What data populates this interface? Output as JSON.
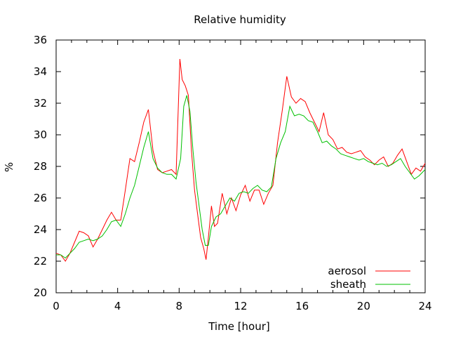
{
  "chart_data": {
    "type": "line",
    "title": "Relative humidity",
    "xlabel": "Time [hour]",
    "ylabel": "%",
    "xlim": [
      0,
      24
    ],
    "ylim": [
      20,
      36
    ],
    "xticks": [
      0,
      4,
      8,
      12,
      16,
      20,
      24
    ],
    "yticks": [
      20,
      22,
      24,
      26,
      28,
      30,
      32,
      34,
      36
    ],
    "grid": false,
    "legend_position": "bottom-right",
    "series": [
      {
        "name": "aerosol",
        "color": "#ff0000",
        "points": [
          [
            0.0,
            22.5
          ],
          [
            0.3,
            22.4
          ],
          [
            0.6,
            22.0
          ],
          [
            0.9,
            22.5
          ],
          [
            1.2,
            23.2
          ],
          [
            1.5,
            23.9
          ],
          [
            1.8,
            23.8
          ],
          [
            2.1,
            23.6
          ],
          [
            2.4,
            22.9
          ],
          [
            2.7,
            23.4
          ],
          [
            3.0,
            24.0
          ],
          [
            3.3,
            24.6
          ],
          [
            3.6,
            25.1
          ],
          [
            3.9,
            24.6
          ],
          [
            4.2,
            24.6
          ],
          [
            4.5,
            26.5
          ],
          [
            4.8,
            28.5
          ],
          [
            5.1,
            28.3
          ],
          [
            5.4,
            29.5
          ],
          [
            5.7,
            30.8
          ],
          [
            6.0,
            31.6
          ],
          [
            6.3,
            29.0
          ],
          [
            6.6,
            27.8
          ],
          [
            6.9,
            27.6
          ],
          [
            7.2,
            27.7
          ],
          [
            7.5,
            27.8
          ],
          [
            7.8,
            27.5
          ],
          [
            8.05,
            34.8
          ],
          [
            8.2,
            33.5
          ],
          [
            8.4,
            33.1
          ],
          [
            8.6,
            32.5
          ],
          [
            8.8,
            29.0
          ],
          [
            9.0,
            26.5
          ],
          [
            9.2,
            25.0
          ],
          [
            9.4,
            23.5
          ],
          [
            9.6,
            22.8
          ],
          [
            9.75,
            22.1
          ],
          [
            9.9,
            23.5
          ],
          [
            10.1,
            25.5
          ],
          [
            10.3,
            24.2
          ],
          [
            10.5,
            24.4
          ],
          [
            10.8,
            26.3
          ],
          [
            11.1,
            25.0
          ],
          [
            11.4,
            26.0
          ],
          [
            11.7,
            25.2
          ],
          [
            12.0,
            26.2
          ],
          [
            12.3,
            26.8
          ],
          [
            12.6,
            25.8
          ],
          [
            12.9,
            26.5
          ],
          [
            13.2,
            26.5
          ],
          [
            13.5,
            25.6
          ],
          [
            13.8,
            26.3
          ],
          [
            14.1,
            26.8
          ],
          [
            14.4,
            29.5
          ],
          [
            14.7,
            31.5
          ],
          [
            15.0,
            33.7
          ],
          [
            15.3,
            32.4
          ],
          [
            15.6,
            32.0
          ],
          [
            15.9,
            32.3
          ],
          [
            16.2,
            32.1
          ],
          [
            16.5,
            31.4
          ],
          [
            16.8,
            30.8
          ],
          [
            17.1,
            30.2
          ],
          [
            17.4,
            31.4
          ],
          [
            17.7,
            30.0
          ],
          [
            18.0,
            29.7
          ],
          [
            18.3,
            29.1
          ],
          [
            18.6,
            29.2
          ],
          [
            18.9,
            28.9
          ],
          [
            19.2,
            28.8
          ],
          [
            19.5,
            28.9
          ],
          [
            19.8,
            29.0
          ],
          [
            20.1,
            28.6
          ],
          [
            20.4,
            28.4
          ],
          [
            20.7,
            28.1
          ],
          [
            21.0,
            28.4
          ],
          [
            21.3,
            28.6
          ],
          [
            21.6,
            28.0
          ],
          [
            21.9,
            28.2
          ],
          [
            22.2,
            28.7
          ],
          [
            22.5,
            29.1
          ],
          [
            22.8,
            28.3
          ],
          [
            23.1,
            27.5
          ],
          [
            23.4,
            27.9
          ],
          [
            23.7,
            27.7
          ],
          [
            24.0,
            28.2
          ]
        ]
      },
      {
        "name": "sheath",
        "color": "#00c000",
        "points": [
          [
            0.0,
            22.4
          ],
          [
            0.3,
            22.4
          ],
          [
            0.6,
            22.2
          ],
          [
            0.9,
            22.5
          ],
          [
            1.2,
            22.8
          ],
          [
            1.5,
            23.2
          ],
          [
            1.8,
            23.3
          ],
          [
            2.1,
            23.4
          ],
          [
            2.4,
            23.3
          ],
          [
            2.7,
            23.4
          ],
          [
            3.0,
            23.6
          ],
          [
            3.3,
            24.0
          ],
          [
            3.6,
            24.5
          ],
          [
            3.9,
            24.6
          ],
          [
            4.2,
            24.2
          ],
          [
            4.5,
            25.0
          ],
          [
            4.8,
            26.0
          ],
          [
            5.1,
            26.8
          ],
          [
            5.4,
            28.0
          ],
          [
            5.7,
            29.2
          ],
          [
            6.0,
            30.2
          ],
          [
            6.3,
            28.5
          ],
          [
            6.6,
            27.9
          ],
          [
            6.9,
            27.6
          ],
          [
            7.2,
            27.5
          ],
          [
            7.5,
            27.5
          ],
          [
            7.8,
            27.2
          ],
          [
            8.1,
            28.5
          ],
          [
            8.3,
            31.8
          ],
          [
            8.5,
            32.5
          ],
          [
            8.7,
            31.5
          ],
          [
            8.9,
            29.0
          ],
          [
            9.1,
            27.0
          ],
          [
            9.3,
            25.5
          ],
          [
            9.5,
            24.0
          ],
          [
            9.7,
            23.0
          ],
          [
            9.9,
            23.0
          ],
          [
            10.1,
            24.2
          ],
          [
            10.4,
            24.8
          ],
          [
            10.7,
            25.0
          ],
          [
            11.0,
            25.5
          ],
          [
            11.3,
            26.0
          ],
          [
            11.6,
            25.8
          ],
          [
            11.9,
            26.3
          ],
          [
            12.2,
            26.4
          ],
          [
            12.5,
            26.3
          ],
          [
            12.8,
            26.6
          ],
          [
            13.1,
            26.8
          ],
          [
            13.4,
            26.5
          ],
          [
            13.7,
            26.4
          ],
          [
            14.0,
            26.7
          ],
          [
            14.3,
            28.5
          ],
          [
            14.6,
            29.5
          ],
          [
            14.9,
            30.2
          ],
          [
            15.2,
            31.8
          ],
          [
            15.5,
            31.2
          ],
          [
            15.8,
            31.3
          ],
          [
            16.1,
            31.2
          ],
          [
            16.4,
            30.9
          ],
          [
            16.7,
            30.8
          ],
          [
            17.0,
            30.2
          ],
          [
            17.3,
            29.5
          ],
          [
            17.6,
            29.6
          ],
          [
            17.9,
            29.3
          ],
          [
            18.2,
            29.1
          ],
          [
            18.5,
            28.8
          ],
          [
            18.8,
            28.7
          ],
          [
            19.1,
            28.6
          ],
          [
            19.4,
            28.5
          ],
          [
            19.7,
            28.4
          ],
          [
            20.0,
            28.5
          ],
          [
            20.3,
            28.3
          ],
          [
            20.6,
            28.2
          ],
          [
            20.9,
            28.1
          ],
          [
            21.2,
            28.2
          ],
          [
            21.5,
            28.0
          ],
          [
            21.8,
            28.1
          ],
          [
            22.1,
            28.3
          ],
          [
            22.4,
            28.5
          ],
          [
            22.7,
            28.0
          ],
          [
            23.0,
            27.6
          ],
          [
            23.3,
            27.2
          ],
          [
            23.6,
            27.4
          ],
          [
            24.0,
            27.8
          ]
        ]
      }
    ]
  }
}
